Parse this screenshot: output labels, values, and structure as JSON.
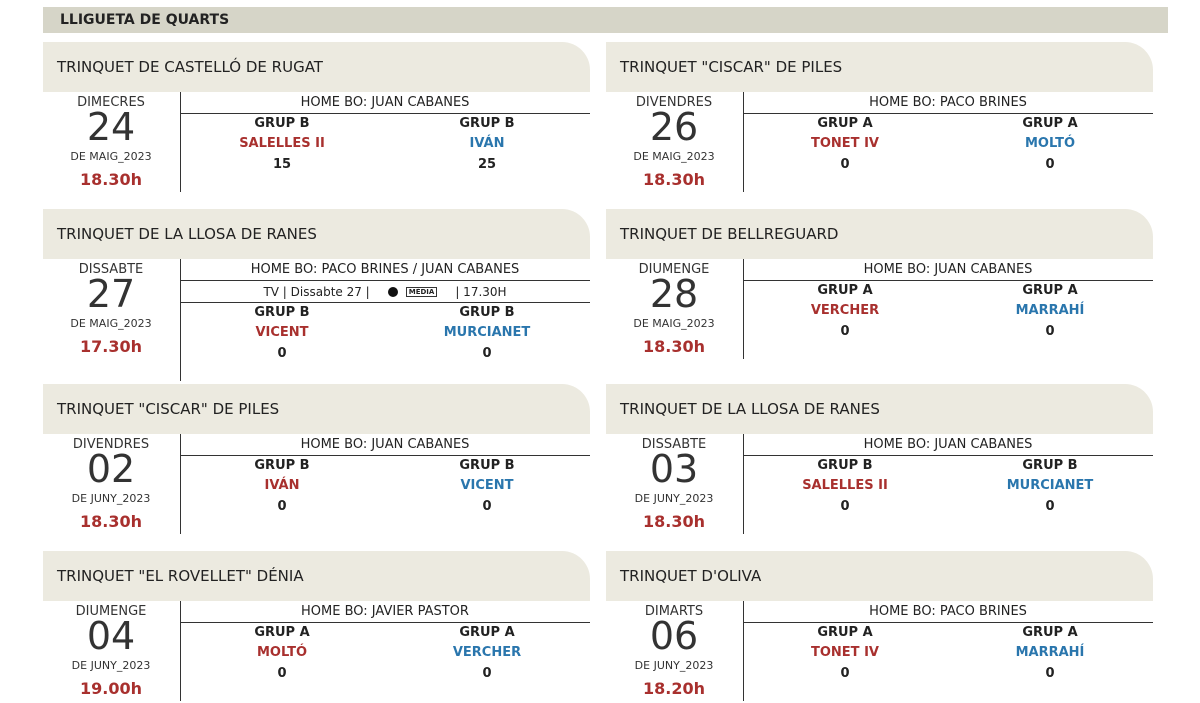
{
  "header": {
    "title": "LLIGUETA DE QUARTS"
  },
  "matches": [
    {
      "venue": "TRINQUET DE CASTELLÓ DE RUGAT",
      "weekday": "DIMECRES",
      "day": "24",
      "month": "DE MAIG_2023",
      "time": "18.30h",
      "referee": "HOME BO: JUAN CABANES",
      "teams": [
        {
          "group": "GRUP B",
          "name": "SALELLES II",
          "score": 15
        },
        {
          "group": "GRUP B",
          "name": "IVÁN",
          "score": 25
        }
      ]
    },
    {
      "venue": "TRINQUET \"CISCAR\" DE PILES",
      "weekday": "DIVENDRES",
      "day": "26",
      "month": "DE MAIG_2023",
      "time": "18.30h",
      "referee": "HOME BO: PACO BRINES",
      "teams": [
        {
          "group": "GRUP A",
          "name": "TONET IV",
          "score": 0
        },
        {
          "group": "GRUP A",
          "name": "MOLTÓ",
          "score": 0
        }
      ]
    },
    {
      "venue": "TRINQUET DE LA LLOSA DE RANES",
      "weekday": "DISSABTE",
      "day": "27",
      "month": "DE MAIG_2023",
      "time": "17.30h",
      "referee": "HOME BO: PACO BRINES / JUAN CABANES",
      "tv": {
        "before": "TV | Dissabte 27 |",
        "logo": "MÈDIA",
        "after": "| 17.30H"
      },
      "teams": [
        {
          "group": "GRUP B",
          "name": "VICENT",
          "score": 0
        },
        {
          "group": "GRUP B",
          "name": "MURCIANET",
          "score": 0
        }
      ]
    },
    {
      "venue": "TRINQUET DE BELLREGUARD",
      "weekday": "DIUMENGE",
      "day": "28",
      "month": "DE MAIG_2023",
      "time": "18.30h",
      "referee": "HOME BO: JUAN CABANES",
      "teams": [
        {
          "group": "GRUP A",
          "name": "VERCHER",
          "score": 0
        },
        {
          "group": "GRUP A",
          "name": "MARRAHÍ",
          "score": 0
        }
      ]
    },
    {
      "venue": "TRINQUET \"CISCAR\" DE PILES",
      "weekday": "DIVENDRES",
      "day": "02",
      "month": "DE JUNY_2023",
      "time": "18.30h",
      "referee": "HOME BO: JUAN CABANES",
      "teams": [
        {
          "group": "GRUP B",
          "name": "IVÁN",
          "score": 0
        },
        {
          "group": "GRUP B",
          "name": "VICENT",
          "score": 0
        }
      ]
    },
    {
      "venue": "TRINQUET DE LA LLOSA DE RANES",
      "weekday": "DISSABTE",
      "day": "03",
      "month": "DE JUNY_2023",
      "time": "18.30h",
      "referee": "HOME BO: JUAN CABANES",
      "teams": [
        {
          "group": "GRUP B",
          "name": "SALELLES II",
          "score": 0
        },
        {
          "group": "GRUP B",
          "name": "MURCIANET",
          "score": 0
        }
      ]
    },
    {
      "venue": "TRINQUET \"EL ROVELLET\" DÉNIA",
      "weekday": "DIUMENGE",
      "day": "04",
      "month": "DE JUNY_2023",
      "time": "19.00h",
      "referee": "HOME BO: JAVIER PASTOR",
      "teams": [
        {
          "group": "GRUP A",
          "name": "MOLTÓ",
          "score": 0
        },
        {
          "group": "GRUP A",
          "name": "VERCHER",
          "score": 0
        }
      ]
    },
    {
      "venue": "TRINQUET D'OLIVA",
      "weekday": "DIMARTS",
      "day": "06",
      "month": "DE JUNY_2023",
      "time": "18.20h",
      "referee": "HOME BO: PACO BRINES",
      "teams": [
        {
          "group": "GRUP A",
          "name": "TONET IV",
          "score": 0
        },
        {
          "group": "GRUP A",
          "name": "MARRAHÍ",
          "score": 0
        }
      ]
    }
  ]
}
